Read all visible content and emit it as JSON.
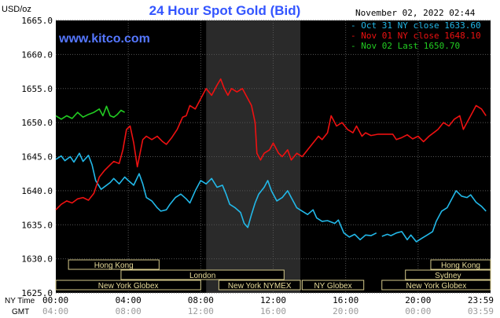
{
  "chart_data": {
    "type": "line",
    "title": "24 Hour Spot Gold (Bid)",
    "watermark": "www.kitco.com",
    "timestamp": "November 02, 2022 02:44",
    "ylabel": "USD/oz",
    "ylim": [
      1625.0,
      1665.0
    ],
    "yticks": [
      "1665.0",
      "1660.0",
      "1655.0",
      "1650.0",
      "1645.0",
      "1640.0",
      "1635.0",
      "1630.0",
      "1625.0"
    ],
    "xlim": [
      0,
      24
    ],
    "xticks_ny": [
      "00:00",
      "04:00",
      "08:00",
      "12:00",
      "16:00",
      "20:00",
      "23:59"
    ],
    "xticks_gmt": [
      "04:00",
      "08:00",
      "12:00",
      "16:00",
      "20:00",
      "00:00",
      "03:59"
    ],
    "x_row_labels": {
      "ny": "NY Time",
      "gmt": "GMT"
    },
    "grid": true,
    "legend_position": "top-right",
    "background": "#000000",
    "highlight_band_hours": [
      8.3,
      13.5
    ],
    "sessions": [
      {
        "label": "Hong Kong",
        "start": 0.7,
        "end": 5.7,
        "row": 0
      },
      {
        "label": "London",
        "start": 3.6,
        "end": 12.6,
        "row": 1
      },
      {
        "label": "New York Globex",
        "start": 0.0,
        "end": 8.0,
        "row": 2
      },
      {
        "label": "New York NYMEX",
        "start": 9.0,
        "end": 13.5,
        "row": 2
      },
      {
        "label": "NY Globex",
        "start": 13.6,
        "end": 17.0,
        "row": 2
      },
      {
        "label": "Hong Kong",
        "start": 20.7,
        "end": 24.0,
        "row": 0
      },
      {
        "label": "Sydney",
        "start": 19.3,
        "end": 24.0,
        "row": 1
      },
      {
        "label": "New York Globex",
        "start": 18.0,
        "end": 24.0,
        "row": 2
      }
    ],
    "series": [
      {
        "name": "Oct 31 NY close 1633.60",
        "color": "#22b8e8",
        "points": [
          [
            0,
            1644.6
          ],
          [
            0.3,
            1645.1
          ],
          [
            0.5,
            1644.4
          ],
          [
            0.8,
            1645.0
          ],
          [
            1.0,
            1644.2
          ],
          [
            1.3,
            1645.5
          ],
          [
            1.5,
            1644.3
          ],
          [
            1.8,
            1645.2
          ],
          [
            2.0,
            1643.8
          ],
          [
            2.2,
            1641.5
          ],
          [
            2.5,
            1640.2
          ],
          [
            2.7,
            1640.6
          ],
          [
            3.0,
            1641.2
          ],
          [
            3.2,
            1641.8
          ],
          [
            3.5,
            1641.0
          ],
          [
            3.8,
            1642.0
          ],
          [
            4.0,
            1641.5
          ],
          [
            4.3,
            1640.8
          ],
          [
            4.6,
            1642.5
          ],
          [
            4.8,
            1641.0
          ],
          [
            5.0,
            1639.0
          ],
          [
            5.3,
            1638.5
          ],
          [
            5.6,
            1637.5
          ],
          [
            5.8,
            1637.0
          ],
          [
            6.1,
            1637.2
          ],
          [
            6.3,
            1638.0
          ],
          [
            6.6,
            1639.0
          ],
          [
            6.9,
            1639.5
          ],
          [
            7.2,
            1638.8
          ],
          [
            7.4,
            1638.2
          ],
          [
            7.7,
            1640.0
          ],
          [
            8.0,
            1641.5
          ],
          [
            8.3,
            1641.0
          ],
          [
            8.6,
            1641.8
          ],
          [
            8.9,
            1640.5
          ],
          [
            9.2,
            1640.8
          ],
          [
            9.4,
            1639.5
          ],
          [
            9.6,
            1638.0
          ],
          [
            9.9,
            1637.5
          ],
          [
            10.2,
            1636.8
          ],
          [
            10.4,
            1635.2
          ],
          [
            10.6,
            1634.6
          ],
          [
            10.8,
            1636.5
          ],
          [
            11.0,
            1638.2
          ],
          [
            11.2,
            1639.5
          ],
          [
            11.5,
            1640.5
          ],
          [
            11.7,
            1641.5
          ],
          [
            11.9,
            1640.0
          ],
          [
            12.2,
            1638.5
          ],
          [
            12.5,
            1639.0
          ],
          [
            12.8,
            1640.0
          ],
          [
            13.0,
            1639.0
          ],
          [
            13.3,
            1637.5
          ],
          [
            13.6,
            1637.0
          ],
          [
            13.9,
            1636.5
          ],
          [
            14.2,
            1637.2
          ],
          [
            14.4,
            1636.0
          ],
          [
            14.7,
            1635.5
          ],
          [
            15.0,
            1635.6
          ],
          [
            15.4,
            1635.2
          ],
          [
            15.6,
            1635.7
          ],
          [
            15.9,
            1633.8
          ],
          [
            16.2,
            1633.2
          ],
          [
            16.5,
            1633.6
          ],
          [
            16.8,
            1632.8
          ],
          [
            17.1,
            1633.5
          ],
          [
            17.4,
            1633.4
          ],
          [
            17.7,
            1633.8
          ],
          [
            null,
            null
          ],
          [
            18.0,
            1633.3
          ],
          [
            18.3,
            1633.6
          ],
          [
            18.5,
            1633.4
          ],
          [
            18.8,
            1633.8
          ],
          [
            19.1,
            1634.0
          ],
          [
            19.4,
            1632.8
          ],
          [
            19.6,
            1633.5
          ],
          [
            19.9,
            1632.5
          ],
          [
            20.2,
            1633.0
          ],
          [
            20.5,
            1633.5
          ],
          [
            20.8,
            1634.0
          ],
          [
            21.0,
            1635.5
          ],
          [
            21.3,
            1637.0
          ],
          [
            21.6,
            1637.5
          ],
          [
            21.9,
            1639.0
          ],
          [
            22.1,
            1640.0
          ],
          [
            22.4,
            1639.2
          ],
          [
            22.7,
            1639.0
          ],
          [
            22.9,
            1639.4
          ],
          [
            23.2,
            1638.3
          ],
          [
            23.5,
            1637.7
          ],
          [
            23.75,
            1637.0
          ]
        ]
      },
      {
        "name": "Nov 01 NY close 1648.10",
        "color": "#ee1111",
        "points": [
          [
            0,
            1637.2
          ],
          [
            0.3,
            1638.0
          ],
          [
            0.6,
            1638.5
          ],
          [
            0.9,
            1638.2
          ],
          [
            1.2,
            1638.8
          ],
          [
            1.5,
            1639.0
          ],
          [
            1.8,
            1638.6
          ],
          [
            2.1,
            1639.6
          ],
          [
            2.4,
            1642.0
          ],
          [
            2.7,
            1643.0
          ],
          [
            3.0,
            1643.8
          ],
          [
            3.2,
            1644.3
          ],
          [
            3.5,
            1644.0
          ],
          [
            3.7,
            1646.0
          ],
          [
            3.9,
            1649.0
          ],
          [
            4.1,
            1649.5
          ],
          [
            4.3,
            1647.0
          ],
          [
            4.5,
            1643.5
          ],
          [
            4.8,
            1647.5
          ],
          [
            5.0,
            1648.0
          ],
          [
            5.3,
            1647.5
          ],
          [
            5.6,
            1648.0
          ],
          [
            5.9,
            1647.2
          ],
          [
            6.1,
            1646.8
          ],
          [
            6.4,
            1647.8
          ],
          [
            6.7,
            1649.0
          ],
          [
            7.0,
            1650.8
          ],
          [
            7.2,
            1651.0
          ],
          [
            7.4,
            1652.5
          ],
          [
            7.7,
            1652.0
          ],
          [
            8.0,
            1653.5
          ],
          [
            8.3,
            1655.0
          ],
          [
            8.6,
            1654.0
          ],
          [
            8.9,
            1655.5
          ],
          [
            9.1,
            1656.4
          ],
          [
            9.3,
            1655.0
          ],
          [
            9.5,
            1654.0
          ],
          [
            9.7,
            1655.0
          ],
          [
            10.0,
            1654.5
          ],
          [
            10.3,
            1655.0
          ],
          [
            10.5,
            1654.0
          ],
          [
            10.8,
            1652.5
          ],
          [
            11.0,
            1650.0
          ],
          [
            11.1,
            1645.5
          ],
          [
            11.3,
            1644.5
          ],
          [
            11.5,
            1645.5
          ],
          [
            11.8,
            1646.0
          ],
          [
            12.0,
            1647.0
          ],
          [
            12.3,
            1645.5
          ],
          [
            12.5,
            1645.0
          ],
          [
            12.8,
            1646.0
          ],
          [
            13.0,
            1644.5
          ],
          [
            13.3,
            1645.5
          ],
          [
            13.6,
            1645.0
          ],
          [
            13.9,
            1646.0
          ],
          [
            14.2,
            1647.0
          ],
          [
            14.5,
            1648.0
          ],
          [
            14.7,
            1647.5
          ],
          [
            15.0,
            1648.5
          ],
          [
            15.2,
            1651.0
          ],
          [
            15.5,
            1649.5
          ],
          [
            15.8,
            1650.0
          ],
          [
            16.1,
            1649.0
          ],
          [
            16.4,
            1648.5
          ],
          [
            16.6,
            1649.5
          ],
          [
            16.9,
            1648.0
          ],
          [
            17.1,
            1648.5
          ],
          [
            17.4,
            1648.1
          ],
          [
            17.8,
            1648.3
          ],
          [
            18.2,
            1648.3
          ],
          [
            18.6,
            1648.3
          ],
          [
            18.8,
            1647.5
          ],
          [
            19.1,
            1647.8
          ],
          [
            19.4,
            1648.2
          ],
          [
            19.7,
            1647.6
          ],
          [
            20.0,
            1648.0
          ],
          [
            20.3,
            1647.2
          ],
          [
            20.6,
            1648.0
          ],
          [
            20.9,
            1648.6
          ],
          [
            21.1,
            1649.0
          ],
          [
            21.4,
            1650.0
          ],
          [
            21.7,
            1649.5
          ],
          [
            22.0,
            1650.5
          ],
          [
            22.3,
            1651.0
          ],
          [
            22.5,
            1649.0
          ],
          [
            22.7,
            1650.0
          ],
          [
            23.0,
            1651.5
          ],
          [
            23.2,
            1652.5
          ],
          [
            23.5,
            1652.0
          ],
          [
            23.75,
            1651.0
          ]
        ]
      },
      {
        "name": "Nov 02 Last 1650.70",
        "color": "#22cc22",
        "points": [
          [
            0,
            1651.0
          ],
          [
            0.3,
            1650.5
          ],
          [
            0.6,
            1651.0
          ],
          [
            0.9,
            1650.6
          ],
          [
            1.2,
            1651.5
          ],
          [
            1.5,
            1650.8
          ],
          [
            1.8,
            1651.2
          ],
          [
            2.1,
            1651.5
          ],
          [
            2.4,
            1652.0
          ],
          [
            2.6,
            1651.0
          ],
          [
            2.8,
            1652.4
          ],
          [
            3.0,
            1651.0
          ],
          [
            3.2,
            1650.8
          ],
          [
            3.4,
            1651.2
          ],
          [
            3.6,
            1651.8
          ],
          [
            3.8,
            1651.5
          ]
        ]
      }
    ]
  }
}
